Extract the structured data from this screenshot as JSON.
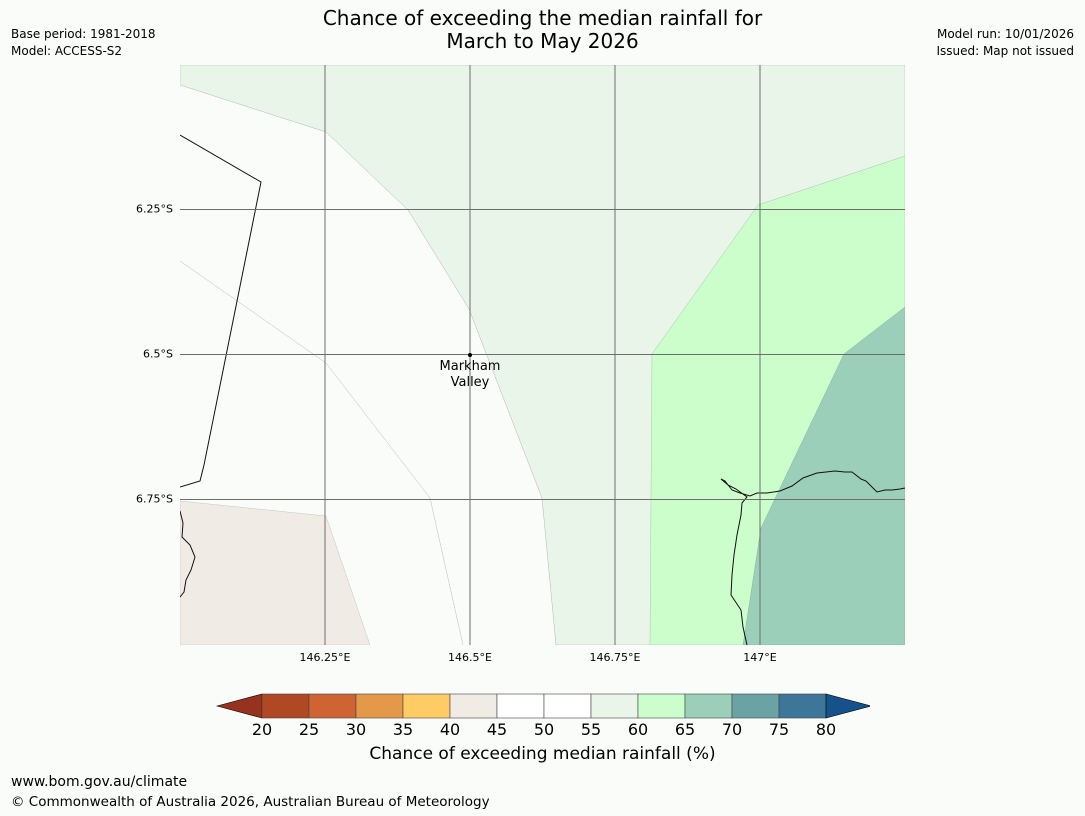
{
  "header": {
    "base_period": "Base period: 1981-2018",
    "model": "Model: ACCESS-S2",
    "title_line1": "Chance of exceeding the median rainfall for",
    "title_line2": "March to May 2026",
    "model_run": "Model run: 10/01/2026",
    "issued": "Issued: Map not issued"
  },
  "map": {
    "latitude_labels": [
      "6.25°S",
      "6.5°S",
      "6.75°S"
    ],
    "longitude_labels": [
      "146.25°E",
      "146.5°E",
      "146.75°E",
      "147°E"
    ],
    "place": {
      "name_line1": "Markham",
      "name_line2": "Valley"
    },
    "colors": {
      "band_40_45": "#f0ebe5",
      "band_45_55": "#fafcf9",
      "band_55_60": "#e9f5e9",
      "band_60_65": "#ccfecc",
      "band_65_70": "#9ccfb9"
    }
  },
  "colorbar": {
    "ticks": [
      "20",
      "25",
      "30",
      "35",
      "40",
      "45",
      "50",
      "55",
      "60",
      "65",
      "70",
      "75",
      "80"
    ],
    "label": "Chance of exceeding median rainfall (%)",
    "under_color": "#96321e",
    "over_color": "#15528c",
    "colors": [
      "#b14824",
      "#cd6431",
      "#e3984a",
      "#fecb65",
      "#f0ebe5",
      "#ffffff",
      "#ffffff",
      "#e9f5e9",
      "#ccfecc",
      "#9ccfb9",
      "#6ba3a5",
      "#3e7699"
    ]
  },
  "footer": {
    "website": "www.bom.gov.au/climate",
    "copyright": "© Commonwealth of Australia 2026, Australian Bureau of Meteorology"
  }
}
